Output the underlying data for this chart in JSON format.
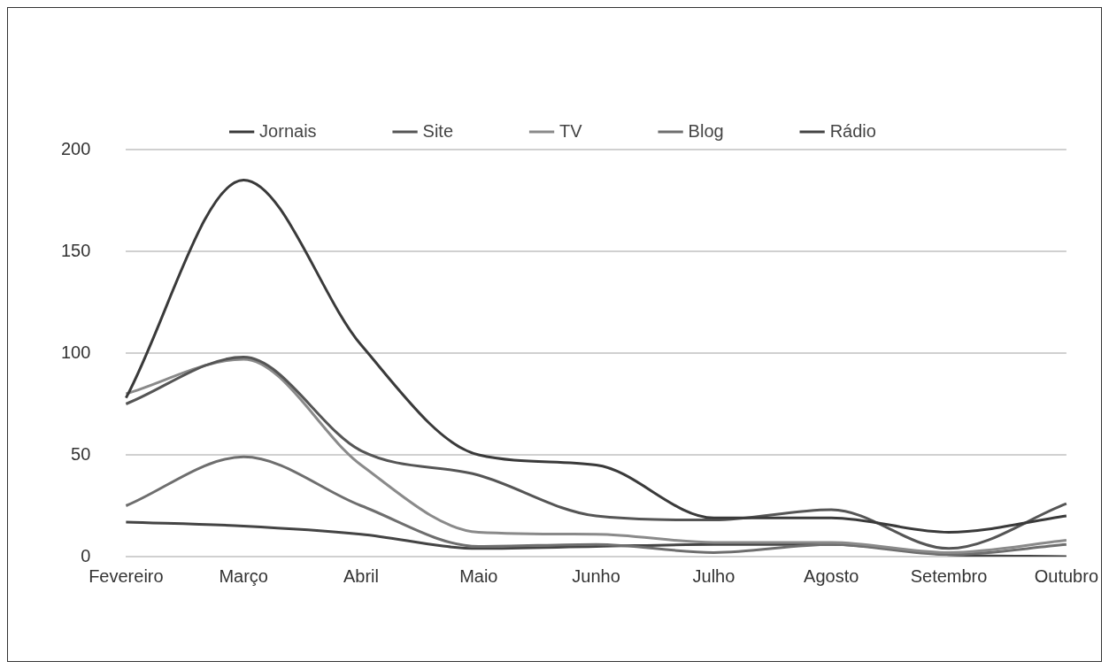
{
  "chart_data": {
    "type": "line",
    "categories": [
      "Fevereiro",
      "Março",
      "Abril",
      "Maio",
      "Junho",
      "Julho",
      "Agosto",
      "Setembro",
      "Outubro"
    ],
    "series": [
      {
        "name": "Jornais",
        "color": "#3a3a3a",
        "values": [
          78,
          185,
          104,
          50,
          45,
          19,
          19,
          12,
          20
        ]
      },
      {
        "name": "Site",
        "color": "#555555",
        "values": [
          75,
          98,
          52,
          40,
          20,
          18,
          23,
          4,
          26
        ]
      },
      {
        "name": "TV",
        "color": "#8a8a8a",
        "values": [
          80,
          97,
          45,
          12,
          11,
          7,
          7,
          2,
          8
        ]
      },
      {
        "name": "Blog",
        "color": "#6e6e6e",
        "values": [
          25,
          49,
          25,
          5,
          6,
          2,
          6,
          1,
          6
        ]
      },
      {
        "name": "Rádio",
        "color": "#444444",
        "values": [
          17,
          15,
          11,
          4,
          5,
          6,
          6,
          1,
          0
        ]
      }
    ],
    "ylim": [
      0,
      200
    ],
    "yticks": [
      0,
      50,
      100,
      150,
      200
    ],
    "grid": "y",
    "legend": "top",
    "marker": "none",
    "line_style": "solid"
  }
}
